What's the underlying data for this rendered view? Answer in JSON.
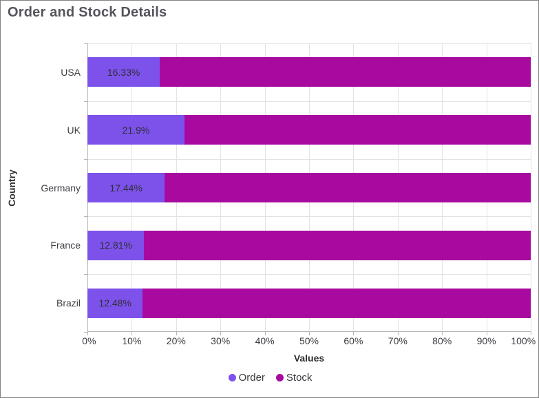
{
  "title": "Order and Stock Details",
  "chart_data": {
    "type": "bar",
    "subtype": "stacked-100",
    "orientation": "horizontal",
    "title": "Order and Stock Details",
    "xlabel": "Values",
    "ylabel": "Country",
    "categories": [
      "USA",
      "UK",
      "Germany",
      "France",
      "Brazil"
    ],
    "series": [
      {
        "name": "Order",
        "color": "#7d52eb",
        "values": [
          16.33,
          21.9,
          17.44,
          12.81,
          12.48
        ],
        "data_labels": [
          "16.33%",
          "21.9%",
          "17.44%",
          "12.81%",
          "12.48%"
        ]
      },
      {
        "name": "Stock",
        "color": "#a80aa0",
        "values": [
          83.67,
          78.1,
          82.56,
          87.19,
          87.52
        ],
        "data_labels": [
          "",
          "",
          "",
          "",
          ""
        ]
      }
    ],
    "x_ticks": [
      "0%",
      "10%",
      "20%",
      "30%",
      "40%",
      "50%",
      "60%",
      "70%",
      "80%",
      "90%",
      "100%"
    ],
    "xlim": [
      0,
      100
    ],
    "grid": "on",
    "legend_position": "bottom"
  }
}
